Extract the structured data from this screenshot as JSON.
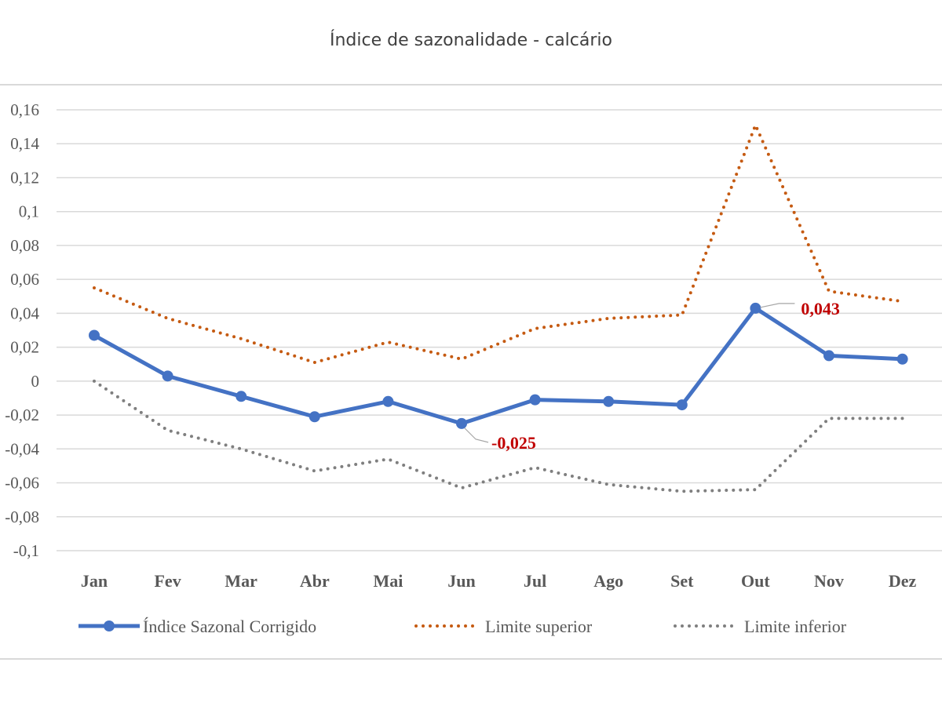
{
  "chart_data": {
    "type": "line",
    "title": "Índice de sazonalidade - calcário",
    "categories": [
      "Jan",
      "Fev",
      "Mar",
      "Abr",
      "Mai",
      "Jun",
      "Jul",
      "Ago",
      "Set",
      "Out",
      "Nov",
      "Dez"
    ],
    "ylim": [
      -0.1,
      0.16
    ],
    "yticks": [
      -0.1,
      -0.08,
      -0.06,
      -0.04,
      -0.02,
      0,
      0.02,
      0.04,
      0.06,
      0.08,
      0.1,
      0.12,
      0.14,
      0.16
    ],
    "ytick_labels": [
      "-0,1",
      "-0,08",
      "-0,06",
      "-0,04",
      "-0,02",
      "0",
      "0,02",
      "0,04",
      "0,06",
      "0,08",
      "0,1",
      "0,12",
      "0,14",
      "0,16"
    ],
    "grid": true,
    "legend_position": "bottom",
    "series": [
      {
        "name": "Índice Sazonal Corrigido",
        "color": "#4472c4",
        "style": "solid-marker",
        "values": [
          0.027,
          0.003,
          -0.009,
          -0.021,
          -0.012,
          -0.025,
          -0.011,
          -0.012,
          -0.014,
          0.043,
          0.015,
          0.013
        ]
      },
      {
        "name": "Limite superior",
        "color": "#c55a11",
        "style": "dotted",
        "values": [
          0.055,
          0.037,
          0.025,
          0.011,
          0.023,
          0.013,
          0.031,
          0.037,
          0.039,
          0.151,
          0.053,
          0.047
        ]
      },
      {
        "name": "Limite inferior",
        "color": "#7f7f7f",
        "style": "dotted",
        "values": [
          0,
          -0.029,
          -0.04,
          -0.053,
          -0.046,
          -0.063,
          -0.051,
          -0.061,
          -0.065,
          -0.064,
          -0.022,
          -0.022
        ]
      }
    ],
    "annotations": [
      {
        "series": 0,
        "index": 5,
        "text": "-0,025"
      },
      {
        "series": 0,
        "index": 9,
        "text": "0,043"
      }
    ]
  }
}
